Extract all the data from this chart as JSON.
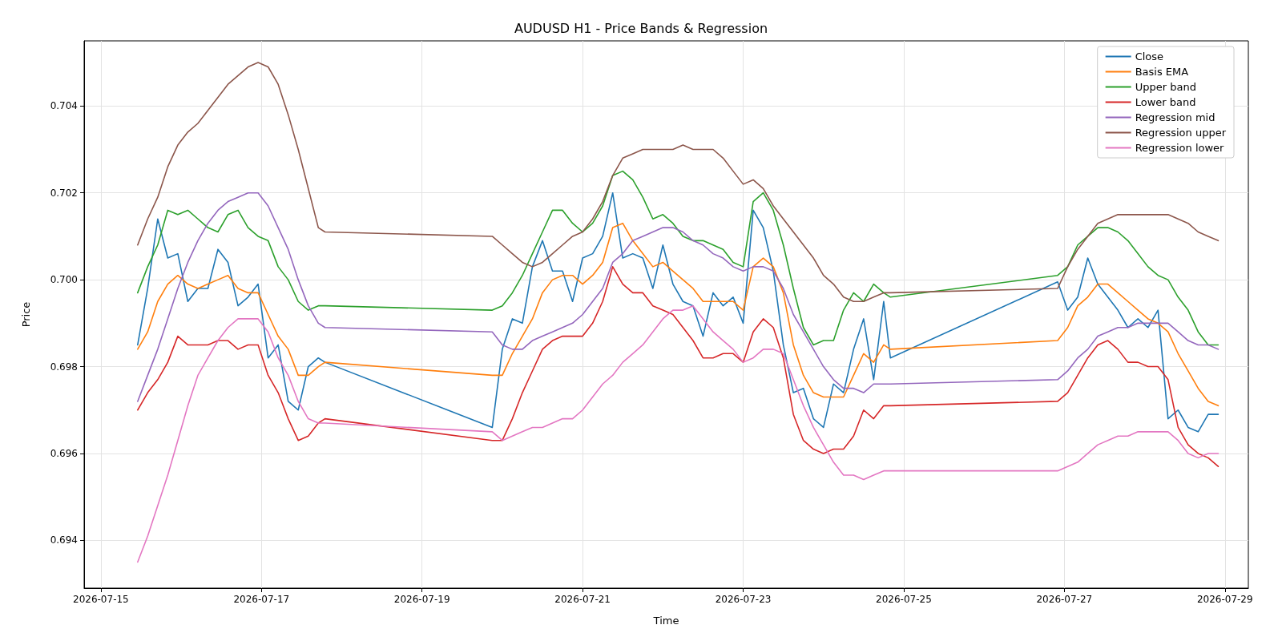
{
  "chart_data": {
    "type": "line",
    "title": "AUDUSD H1 - Price Bands & Regression",
    "xlabel": "Time",
    "ylabel": "Price",
    "x": [
      "2026-07-15T11:00",
      "2026-07-15T14:00",
      "2026-07-15T17:00",
      "2026-07-15T20:00",
      "2026-07-15T23:00",
      "2026-07-16T02:00",
      "2026-07-16T05:00",
      "2026-07-16T08:00",
      "2026-07-16T11:00",
      "2026-07-16T14:00",
      "2026-07-16T17:00",
      "2026-07-16T20:00",
      "2026-07-16T23:00",
      "2026-07-17T02:00",
      "2026-07-17T05:00",
      "2026-07-17T08:00",
      "2026-07-17T11:00",
      "2026-07-17T14:00",
      "2026-07-17T17:00",
      "2026-07-17T19:00",
      "2026-07-19T21:00",
      "2026-07-20T00:00",
      "2026-07-20T03:00",
      "2026-07-20T06:00",
      "2026-07-20T09:00",
      "2026-07-20T12:00",
      "2026-07-20T15:00",
      "2026-07-20T18:00",
      "2026-07-20T21:00",
      "2026-07-21T00:00",
      "2026-07-21T03:00",
      "2026-07-21T06:00",
      "2026-07-21T09:00",
      "2026-07-21T12:00",
      "2026-07-21T15:00",
      "2026-07-21T18:00",
      "2026-07-21T21:00",
      "2026-07-22T00:00",
      "2026-07-22T03:00",
      "2026-07-22T06:00",
      "2026-07-22T09:00",
      "2026-07-22T12:00",
      "2026-07-22T15:00",
      "2026-07-22T18:00",
      "2026-07-22T21:00",
      "2026-07-23T00:00",
      "2026-07-23T03:00",
      "2026-07-23T06:00",
      "2026-07-23T09:00",
      "2026-07-23T12:00",
      "2026-07-23T15:00",
      "2026-07-23T18:00",
      "2026-07-23T21:00",
      "2026-07-24T00:00",
      "2026-07-24T03:00",
      "2026-07-24T06:00",
      "2026-07-24T09:00",
      "2026-07-24T12:00",
      "2026-07-24T15:00",
      "2026-07-24T18:00",
      "2026-07-24T20:00",
      "2026-07-26T22:00",
      "2026-07-27T01:00",
      "2026-07-27T04:00",
      "2026-07-27T07:00",
      "2026-07-27T10:00",
      "2026-07-27T13:00",
      "2026-07-27T16:00",
      "2026-07-27T19:00",
      "2026-07-27T22:00",
      "2026-07-28T01:00",
      "2026-07-28T04:00",
      "2026-07-28T07:00",
      "2026-07-28T10:00",
      "2026-07-28T13:00",
      "2026-07-28T16:00",
      "2026-07-28T19:00",
      "2026-07-28T22:00"
    ],
    "series": [
      {
        "name": "Close",
        "color": "#1f77b4",
        "values": [
          0.6985,
          0.6998,
          0.7014,
          0.7005,
          0.7006,
          0.6995,
          0.6998,
          0.6998,
          0.7007,
          0.7004,
          0.6994,
          0.6996,
          0.6999,
          0.6982,
          0.6985,
          0.6972,
          0.697,
          0.698,
          0.6982,
          0.6981,
          0.6966,
          0.6984,
          0.6991,
          0.699,
          0.7003,
          0.7009,
          0.7002,
          0.7002,
          0.6995,
          0.7005,
          0.7006,
          0.701,
          0.702,
          0.7005,
          0.7006,
          0.7005,
          0.6998,
          0.7008,
          0.6999,
          0.6995,
          0.6994,
          0.6987,
          0.6997,
          0.6994,
          0.6996,
          0.699,
          0.7016,
          0.7012,
          0.7002,
          0.6985,
          0.6974,
          0.6975,
          0.6968,
          0.6966,
          0.6976,
          0.6974,
          0.6984,
          0.6991,
          0.6977,
          0.6995,
          0.6982,
          0.69995,
          0.6993,
          0.6996,
          0.7005,
          0.6999,
          0.6996,
          0.6993,
          0.6989,
          0.6991,
          0.6989,
          0.6993,
          0.6968,
          0.697,
          0.6966,
          0.6965,
          0.6969,
          0.6969
        ]
      },
      {
        "name": "Basis EMA",
        "color": "#ff7f0e",
        "values": [
          0.6984,
          0.6988,
          0.6995,
          0.6999,
          0.7001,
          0.6999,
          0.6998,
          0.6999,
          0.7,
          0.7001,
          0.6998,
          0.6997,
          0.6997,
          0.6992,
          0.6987,
          0.6984,
          0.6978,
          0.6978,
          0.698,
          0.6981,
          0.6978,
          0.6978,
          0.6983,
          0.6987,
          0.6991,
          0.6997,
          0.7,
          0.7001,
          0.7001,
          0.6999,
          0.7001,
          0.7004,
          0.7012,
          0.7013,
          0.7009,
          0.7006,
          0.7003,
          0.7004,
          0.7002,
          0.7,
          0.6998,
          0.6995,
          0.6995,
          0.6995,
          0.6995,
          0.6993,
          0.7003,
          0.7005,
          0.7003,
          0.6997,
          0.6985,
          0.6978,
          0.6974,
          0.6973,
          0.6973,
          0.6973,
          0.6978,
          0.6983,
          0.6981,
          0.6985,
          0.6984,
          0.6986,
          0.6989,
          0.6994,
          0.6996,
          0.6999,
          0.6999,
          0.6997,
          0.6995,
          0.6993,
          0.6991,
          0.699,
          0.6988,
          0.6983,
          0.6979,
          0.6975,
          0.6972,
          0.6971
        ]
      },
      {
        "name": "Upper band",
        "color": "#2ca02c",
        "values": [
          0.6997,
          0.7003,
          0.7008,
          0.7016,
          0.7015,
          0.7016,
          0.7014,
          0.7012,
          0.7011,
          0.7015,
          0.7016,
          0.7012,
          0.701,
          0.7009,
          0.7003,
          0.7,
          0.6995,
          0.6993,
          0.6994,
          0.6994,
          0.6993,
          0.6994,
          0.6997,
          0.7001,
          0.7006,
          0.7011,
          0.7016,
          0.7016,
          0.7013,
          0.7011,
          0.7013,
          0.7017,
          0.7024,
          0.7025,
          0.7023,
          0.7019,
          0.7014,
          0.7015,
          0.7013,
          0.701,
          0.7009,
          0.7009,
          0.7008,
          0.7007,
          0.7004,
          0.7003,
          0.7018,
          0.702,
          0.7016,
          0.7008,
          0.6998,
          0.6989,
          0.6985,
          0.6986,
          0.6986,
          0.6993,
          0.6997,
          0.6995,
          0.6999,
          0.6997,
          0.6996,
          0.7001,
          0.7003,
          0.7008,
          0.701,
          0.7012,
          0.7012,
          0.7011,
          0.7009,
          0.7006,
          0.7003,
          0.7001,
          0.7,
          0.6996,
          0.6993,
          0.6988,
          0.6985,
          0.6985
        ]
      },
      {
        "name": "Lower band",
        "color": "#d62728",
        "values": [
          0.697,
          0.6974,
          0.6977,
          0.6981,
          0.6987,
          0.6985,
          0.6985,
          0.6985,
          0.6986,
          0.6986,
          0.6984,
          0.6985,
          0.6985,
          0.6978,
          0.6974,
          0.6968,
          0.6963,
          0.6964,
          0.6967,
          0.6968,
          0.6963,
          0.6963,
          0.6968,
          0.6974,
          0.6979,
          0.6984,
          0.6986,
          0.6987,
          0.6987,
          0.6987,
          0.699,
          0.6995,
          0.7003,
          0.6999,
          0.6997,
          0.6997,
          0.6994,
          0.6993,
          0.6992,
          0.6989,
          0.6986,
          0.6982,
          0.6982,
          0.6983,
          0.6983,
          0.6981,
          0.6988,
          0.6991,
          0.6989,
          0.6982,
          0.6969,
          0.6963,
          0.6961,
          0.696,
          0.6961,
          0.6961,
          0.6964,
          0.697,
          0.6968,
          0.6971,
          0.6971,
          0.6972,
          0.6974,
          0.6978,
          0.6982,
          0.6985,
          0.6986,
          0.6984,
          0.6981,
          0.6981,
          0.698,
          0.698,
          0.6977,
          0.6966,
          0.6962,
          0.696,
          0.6959,
          0.6957
        ]
      },
      {
        "name": "Regression mid",
        "color": "#9467bd",
        "values": [
          0.6972,
          0.6978,
          0.6984,
          0.6991,
          0.6998,
          0.7004,
          0.7009,
          0.7013,
          0.7016,
          0.7018,
          0.7019,
          0.702,
          0.702,
          0.7017,
          0.7012,
          0.7007,
          0.7,
          0.6994,
          0.699,
          0.6989,
          0.6988,
          0.6985,
          0.6984,
          0.6984,
          0.6986,
          0.6987,
          0.6988,
          0.6989,
          0.699,
          0.6992,
          0.6995,
          0.6998,
          0.7004,
          0.7006,
          0.7009,
          0.701,
          0.7011,
          0.7012,
          0.7012,
          0.7011,
          0.7009,
          0.7008,
          0.7006,
          0.7005,
          0.7003,
          0.7002,
          0.7003,
          0.7003,
          0.7002,
          0.6998,
          0.6992,
          0.6988,
          0.6984,
          0.698,
          0.6977,
          0.6975,
          0.6975,
          0.6974,
          0.6976,
          0.6976,
          0.6976,
          0.6977,
          0.6979,
          0.6982,
          0.6984,
          0.6987,
          0.6988,
          0.6989,
          0.6989,
          0.699,
          0.699,
          0.699,
          0.699,
          0.6988,
          0.6986,
          0.6985,
          0.6985,
          0.6984
        ]
      },
      {
        "name": "Regression upper",
        "color": "#8c564b",
        "values": [
          0.7008,
          0.7014,
          0.7019,
          0.7026,
          0.7031,
          0.7034,
          0.7036,
          0.7039,
          0.7042,
          0.7045,
          0.7047,
          0.7049,
          0.705,
          0.7049,
          0.7045,
          0.7038,
          0.703,
          0.7021,
          0.7012,
          0.7011,
          0.701,
          0.7008,
          0.7006,
          0.7004,
          0.7003,
          0.7004,
          0.7006,
          0.7008,
          0.701,
          0.7011,
          0.7014,
          0.7018,
          0.7024,
          0.7028,
          0.7029,
          0.703,
          0.703,
          0.703,
          0.703,
          0.7031,
          0.703,
          0.703,
          0.703,
          0.7028,
          0.7025,
          0.7022,
          0.7023,
          0.7021,
          0.7017,
          0.7014,
          0.7011,
          0.7008,
          0.7005,
          0.7001,
          0.6999,
          0.6996,
          0.6995,
          0.6995,
          0.6996,
          0.6997,
          0.6997,
          0.6998,
          0.7003,
          0.7007,
          0.701,
          0.7013,
          0.7014,
          0.7015,
          0.7015,
          0.7015,
          0.7015,
          0.7015,
          0.7015,
          0.7014,
          0.7013,
          0.7011,
          0.701,
          0.7009
        ]
      },
      {
        "name": "Regression lower",
        "color": "#e377c2",
        "values": [
          0.6935,
          0.6941,
          0.6948,
          0.6955,
          0.6963,
          0.6971,
          0.6978,
          0.6982,
          0.6986,
          0.6989,
          0.6991,
          0.6991,
          0.6991,
          0.6988,
          0.6982,
          0.6978,
          0.6972,
          0.6968,
          0.6967,
          0.6967,
          0.6965,
          0.6963,
          0.6964,
          0.6965,
          0.6966,
          0.6966,
          0.6967,
          0.6968,
          0.6968,
          0.697,
          0.6973,
          0.6976,
          0.6978,
          0.6981,
          0.6983,
          0.6985,
          0.6988,
          0.6991,
          0.6993,
          0.6993,
          0.6994,
          0.6991,
          0.6988,
          0.6986,
          0.6984,
          0.6981,
          0.6982,
          0.6984,
          0.6984,
          0.6983,
          0.6977,
          0.6971,
          0.6966,
          0.6962,
          0.6958,
          0.6955,
          0.6955,
          0.6954,
          0.6955,
          0.6956,
          0.6956,
          0.6956,
          0.6957,
          0.6958,
          0.696,
          0.6962,
          0.6963,
          0.6964,
          0.6964,
          0.6965,
          0.6965,
          0.6965,
          0.6965,
          0.6963,
          0.696,
          0.6959,
          0.696,
          0.696
        ]
      }
    ],
    "xlim": [
      "2026-07-14T19:00",
      "2026-07-29T07:00"
    ],
    "xticks": [
      "2026-07-15",
      "2026-07-17",
      "2026-07-19",
      "2026-07-21",
      "2026-07-23",
      "2026-07-25",
      "2026-07-27",
      "2026-07-29"
    ],
    "ylim": [
      0.6929,
      0.7055
    ],
    "yticks": [
      {
        "value": 0.694,
        "label": "0.694"
      },
      {
        "value": 0.696,
        "label": "0.696"
      },
      {
        "value": 0.698,
        "label": "0.698"
      },
      {
        "value": 0.7,
        "label": "0.700"
      },
      {
        "value": 0.702,
        "label": "0.702"
      },
      {
        "value": 0.704,
        "label": "0.704"
      }
    ],
    "grid": true,
    "legend": "top right"
  }
}
